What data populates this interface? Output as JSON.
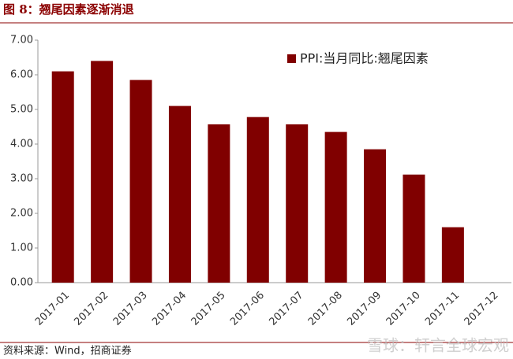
{
  "chart_data": {
    "type": "bar",
    "title": "图 8：翘尾因素逐渐消退",
    "source": "资料来源：Wind，招商证券",
    "watermark": "雪球：轩言全球宏观",
    "categories": [
      "2017-01",
      "2017-02",
      "2017-03",
      "2017-04",
      "2017-05",
      "2017-06",
      "2017-07",
      "2017-08",
      "2017-09",
      "2017-10",
      "2017-11",
      "2017-12"
    ],
    "series": [
      {
        "name": "PPI:当月同比:翘尾因素",
        "color": "#800000",
        "values": [
          6.1,
          6.4,
          5.85,
          5.1,
          4.57,
          4.78,
          4.57,
          4.35,
          3.85,
          3.12,
          1.6,
          null
        ]
      }
    ],
    "ylim": [
      0,
      7
    ],
    "yticks": [
      {
        "value": 0,
        "label": "0.00"
      },
      {
        "value": 1,
        "label": "1.00"
      },
      {
        "value": 2,
        "label": "2.00"
      },
      {
        "value": 3,
        "label": "3.00"
      },
      {
        "value": 4,
        "label": "4.00"
      },
      {
        "value": 5,
        "label": "5.00"
      },
      {
        "value": 6,
        "label": "6.00"
      },
      {
        "value": 7,
        "label": "7.00"
      }
    ],
    "grid": false
  }
}
